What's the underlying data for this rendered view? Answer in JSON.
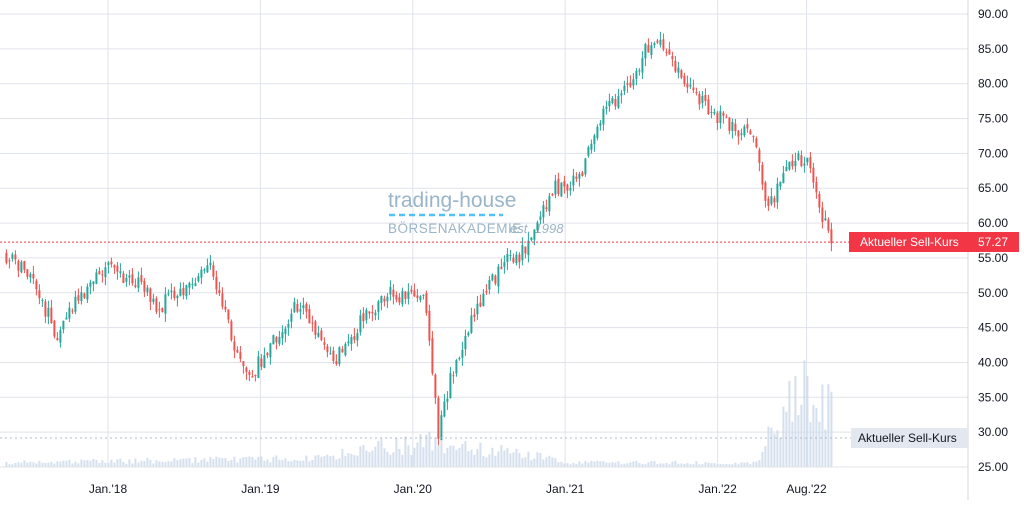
{
  "chart_data": {
    "type": "candlestick",
    "title": "",
    "xlabel": "",
    "ylabel": "",
    "ylim": [
      25,
      90
    ],
    "y_ticks": [
      "90.00",
      "85.00",
      "80.00",
      "75.00",
      "70.00",
      "65.00",
      "60.00",
      "55.00",
      "50.00",
      "45.00",
      "40.00",
      "35.00",
      "30.00",
      "25.00"
    ],
    "x_ticks": [
      "Jan.'18",
      "Jan.'19",
      "Jan.'20",
      "Jan.'21",
      "Jan.'22",
      "Aug.'22"
    ],
    "grid": true,
    "price_line": {
      "label": "Aktueller Sell-Kurs",
      "value": "57.27",
      "color": "#f23645"
    },
    "volume_label": "Aktueller Sell-Kurs",
    "watermark": {
      "line1": "trading-house",
      "line2": "BÖRSENAKADEMIE",
      "line3": "est. 1998"
    },
    "up_color": "#26a69a",
    "down_color": "#ef5350",
    "price_path": [
      [
        "2017-05",
        55.5
      ],
      [
        "2017-07",
        52
      ],
      [
        "2017-09",
        44
      ],
      [
        "2017-11",
        50
      ],
      [
        "2018-01",
        53.5
      ],
      [
        "2018-03",
        52
      ],
      [
        "2018-05",
        48
      ],
      [
        "2018-07",
        50.5
      ],
      [
        "2018-09",
        54
      ],
      [
        "2018-11",
        42
      ],
      [
        "2018-12",
        37.5
      ],
      [
        "2019-02",
        43
      ],
      [
        "2019-04",
        48.5
      ],
      [
        "2019-06",
        43
      ],
      [
        "2019-07",
        40.5
      ],
      [
        "2019-09",
        46
      ],
      [
        "2019-11",
        50
      ],
      [
        "2020-01",
        49
      ],
      [
        "2020-02",
        49.5
      ],
      [
        "2020-03",
        30
      ],
      [
        "2020-04",
        38
      ],
      [
        "2020-06",
        48
      ],
      [
        "2020-08",
        54
      ],
      [
        "2020-10",
        56
      ],
      [
        "2020-12",
        65
      ],
      [
        "2021-02",
        66
      ],
      [
        "2021-04",
        76
      ],
      [
        "2021-06",
        80
      ],
      [
        "2021-08",
        87
      ],
      [
        "2021-10",
        81
      ],
      [
        "2021-12",
        77
      ],
      [
        "2022-02",
        74
      ],
      [
        "2022-04",
        72
      ],
      [
        "2022-05",
        62
      ],
      [
        "2022-07",
        69
      ],
      [
        "2022-08",
        69.5
      ],
      [
        "2022-09",
        62
      ],
      [
        "2022-10",
        57.27
      ]
    ],
    "volume_path": [
      [
        "2017-05",
        0.5
      ],
      [
        "2019-06",
        1
      ],
      [
        "2019-09",
        2
      ],
      [
        "2020-03",
        3
      ],
      [
        "2020-06",
        2
      ],
      [
        "2020-10",
        1.5
      ],
      [
        "2021-01",
        0.5
      ],
      [
        "2022-04",
        0.5
      ],
      [
        "2022-06",
        6
      ],
      [
        "2022-08",
        9
      ],
      [
        "2022-10",
        8
      ]
    ]
  }
}
